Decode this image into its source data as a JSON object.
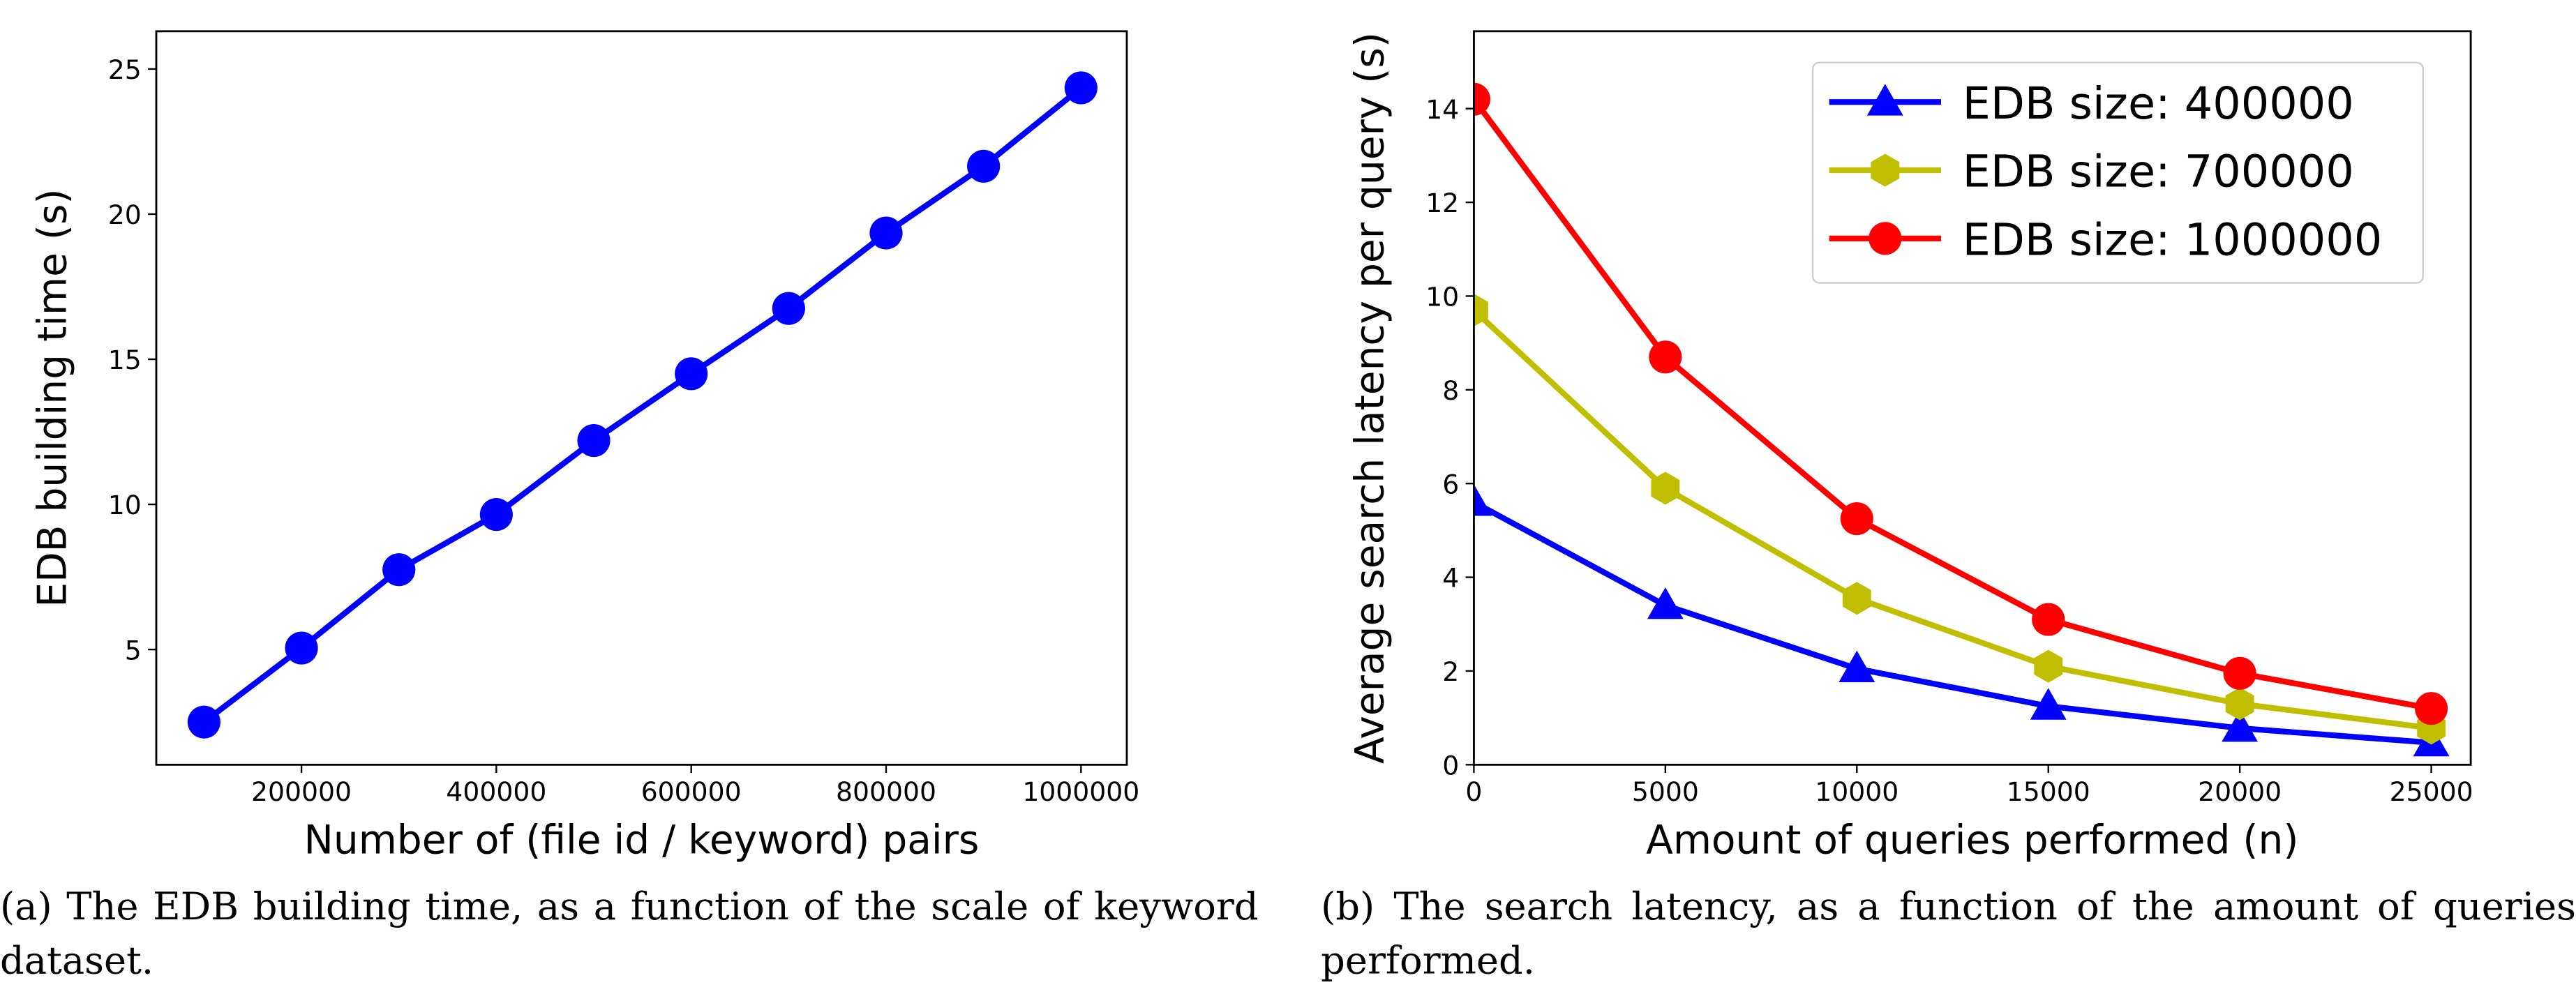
{
  "chart_data": [
    {
      "type": "line",
      "xlabel": "Number of (file id / keyword) pairs",
      "ylabel": "EDB building time (s)",
      "caption": "(a) The EDB building time, as a function of the scale of keyword dataset.",
      "x": [
        100000,
        200000,
        300000,
        400000,
        500000,
        600000,
        700000,
        800000,
        900000,
        1000000
      ],
      "series": [
        {
          "color": "#0000ff",
          "marker": "circle",
          "values": [
            2.5,
            5.05,
            7.75,
            9.65,
            12.2,
            14.5,
            16.75,
            19.35,
            21.65,
            24.35
          ]
        }
      ],
      "xlim": [
        51000,
        1047000
      ],
      "ylim": [
        1.03,
        26.3
      ],
      "xticks": [
        200000,
        400000,
        600000,
        800000,
        1000000
      ],
      "yticks": [
        5,
        10,
        15,
        20,
        25
      ]
    },
    {
      "type": "line",
      "xlabel": "Amount of queries performed (n)",
      "ylabel": "Average search latency per query (s)",
      "caption": "(b) The search latency, as a function of the amount of queries performed.",
      "x": [
        0,
        5000,
        10000,
        15000,
        20000,
        25000
      ],
      "series": [
        {
          "name": "EDB size: 400000",
          "color": "#0000ff",
          "marker": "triangle",
          "values": [
            5.6,
            3.4,
            2.05,
            1.25,
            0.78,
            0.47
          ]
        },
        {
          "name": "EDB size: 700000",
          "color": "#bfbf00",
          "marker": "hexagon",
          "values": [
            9.7,
            5.9,
            3.55,
            2.1,
            1.3,
            0.78
          ]
        },
        {
          "name": "EDB size: 1000000",
          "color": "#ff0000",
          "marker": "circle",
          "values": [
            14.2,
            8.7,
            5.25,
            3.1,
            1.95,
            1.2
          ]
        }
      ],
      "xlim": [
        0,
        26030
      ],
      "ylim": [
        0,
        15.65
      ],
      "xticks": [
        0,
        5000,
        10000,
        15000,
        20000,
        25000
      ],
      "yticks": [
        0,
        2,
        4,
        6,
        8,
        10,
        12,
        14
      ],
      "legend": "upper right"
    }
  ]
}
